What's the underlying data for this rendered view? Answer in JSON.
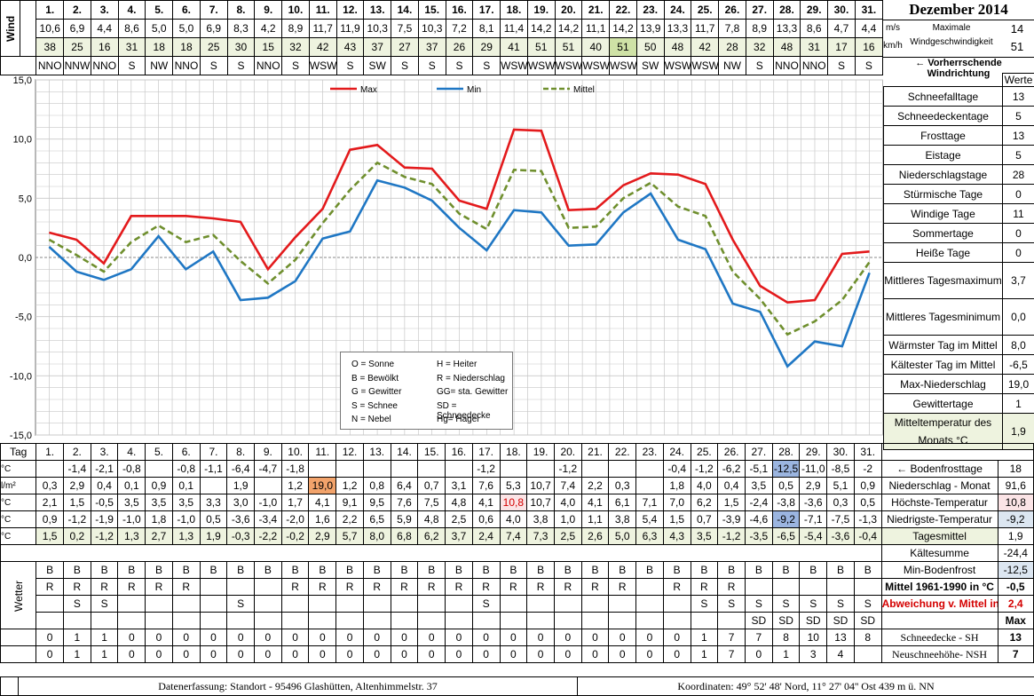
{
  "title": "Dezember 2014",
  "days": [
    "1.",
    "2.",
    "3.",
    "4.",
    "5.",
    "6.",
    "7.",
    "8.",
    "9.",
    "10.",
    "11.",
    "12.",
    "13.",
    "14.",
    "15.",
    "16.",
    "17.",
    "18.",
    "19.",
    "20.",
    "21.",
    "22.",
    "23.",
    "24.",
    "25.",
    "26.",
    "27.",
    "28.",
    "29.",
    "30.",
    "31."
  ],
  "wind": {
    "label": "Wind",
    "ms": [
      "10,6",
      "6,9",
      "4,4",
      "8,6",
      "5,0",
      "5,0",
      "6,9",
      "8,3",
      "4,2",
      "8,9",
      "11,7",
      "11,9",
      "10,3",
      "7,5",
      "10,3",
      "7,2",
      "8,1",
      "11,4",
      "14,2",
      "14,2",
      "11,1",
      "14,2",
      "13,9",
      "13,3",
      "11,7",
      "7,8",
      "8,9",
      "13,3",
      "8,6",
      "4,7",
      "4,4"
    ],
    "kmh": [
      "38",
      "25",
      "16",
      "31",
      "18",
      "18",
      "25",
      "30",
      "15",
      "32",
      "42",
      "43",
      "37",
      "27",
      "37",
      "26",
      "29",
      "41",
      "51",
      "51",
      "40",
      "51",
      "50",
      "48",
      "42",
      "28",
      "32",
      "48",
      "31",
      "17",
      "16"
    ],
    "dir": [
      "NNO",
      "NNW",
      "NNO",
      "S",
      "NW",
      "NNO",
      "S",
      "S",
      "NNO",
      "S",
      "WSW",
      "S",
      "SW",
      "S",
      "S",
      "S",
      "S",
      "WSW",
      "WSW",
      "WSW",
      "WSW",
      "WSW",
      "SW",
      "WSW",
      "WSW",
      "NW",
      "S",
      "NNO",
      "NNO",
      "S",
      "S"
    ],
    "unit_ms": "m/s",
    "unit_kmh": "km/h",
    "max_label_1": "Maximale",
    "max_label_2": "Windgeschwindigkeit",
    "max_ms": "14",
    "max_kmh": "51",
    "dir_label": "← Vorherrschende Windrichtung"
  },
  "chart_data": {
    "type": "line",
    "x": [
      1,
      2,
      3,
      4,
      5,
      6,
      7,
      8,
      9,
      10,
      11,
      12,
      13,
      14,
      15,
      16,
      17,
      18,
      19,
      20,
      21,
      22,
      23,
      24,
      25,
      26,
      27,
      28,
      29,
      30,
      31
    ],
    "ylim": [
      -15,
      15
    ],
    "yticks": [
      "15,0",
      "10,0",
      "5,0",
      "0,0",
      "-5,0",
      "-10,0",
      "-15,0"
    ],
    "series": [
      {
        "name": "Max",
        "color": "#e31a1c",
        "values": [
          2.1,
          1.5,
          -0.5,
          3.5,
          3.5,
          3.5,
          3.3,
          3.0,
          -1.0,
          1.7,
          4.1,
          9.1,
          9.5,
          7.6,
          7.5,
          4.8,
          4.1,
          10.8,
          10.7,
          4.0,
          4.1,
          6.1,
          7.1,
          7.0,
          6.2,
          1.5,
          -2.4,
          -3.8,
          -3.6,
          0.3,
          0.5
        ]
      },
      {
        "name": "Min",
        "color": "#1f77c4",
        "values": [
          0.9,
          -1.2,
          -1.9,
          -1.0,
          1.8,
          -1.0,
          0.5,
          -3.6,
          -3.4,
          -2.0,
          1.6,
          2.2,
          6.5,
          5.9,
          4.8,
          2.5,
          0.6,
          4.0,
          3.8,
          1.0,
          1.1,
          3.8,
          5.4,
          1.5,
          0.7,
          -3.9,
          -4.6,
          -9.2,
          -7.1,
          -7.5,
          -1.3
        ]
      },
      {
        "name": "Mittel",
        "color": "#6f8f2e",
        "dashed": true,
        "values": [
          1.5,
          0.2,
          -1.2,
          1.3,
          2.7,
          1.3,
          1.9,
          -0.3,
          -2.2,
          -0.2,
          2.9,
          5.7,
          8.0,
          6.8,
          6.2,
          3.7,
          2.4,
          7.4,
          7.3,
          2.5,
          2.6,
          5.0,
          6.3,
          4.3,
          3.5,
          -1.2,
          -3.5,
          -6.5,
          -5.4,
          -3.6,
          -0.4
        ]
      }
    ]
  },
  "legend_codes": [
    [
      "O = Sonne",
      "H = Heiter"
    ],
    [
      "B = Bewölkt",
      "R = Niederschlag"
    ],
    [
      "G = Gewitter",
      "GG= sta. Gewitter"
    ],
    [
      "S = Schnee",
      "SD = Schneedecke"
    ],
    [
      "N = Nebel",
      "Hg= Hagel"
    ]
  ],
  "right_panel": {
    "header": "Werte",
    "rows": [
      {
        "label": "Schneefalltage",
        "value": "13"
      },
      {
        "label": "Schneedeckentage",
        "value": "5"
      },
      {
        "label": "Frosttage",
        "value": "13"
      },
      {
        "label": "Eistage",
        "value": "5"
      },
      {
        "label": "Niederschlagstage",
        "value": "28"
      },
      {
        "label": "Stürmische Tage",
        "value": "0"
      },
      {
        "label": "Windige Tage",
        "value": "11"
      },
      {
        "label": "Sommertage",
        "value": "0"
      },
      {
        "label": "Heiße Tage",
        "value": "0"
      },
      {
        "label": "Mittleres Tagesmaximum",
        "value": "3,7"
      },
      {
        "label": "Mittleres Tagesminimum",
        "value": "0,0"
      },
      {
        "label": "Wärmster Tag im Mittel",
        "value": "8,0"
      },
      {
        "label": "Kältester Tag im Mittel",
        "value": "-6,5"
      },
      {
        "label": "Max-Niederschlag",
        "value": "19,0"
      },
      {
        "label": "Gewittertage",
        "value": "1"
      },
      {
        "label": "Mitteltemperatur des Monats °C",
        "value": "1,9"
      }
    ]
  },
  "bottom": {
    "tag_label": "Tag",
    "bodenfrost": {
      "unit": "°C",
      "values": [
        "",
        "-1,4",
        "-2,1",
        "-0,8",
        "",
        "-0,8",
        "-1,1",
        "-6,4",
        "-4,7",
        "-1,8",
        "",
        "",
        "",
        "",
        "",
        "",
        "-1,2",
        "",
        "",
        "-1,2",
        "",
        "",
        "",
        "-0,4",
        "-1,2",
        "-6,2",
        "-5,1",
        "-12,5",
        "-11,0",
        "-8,5",
        "-2"
      ],
      "label": "← Bodenfrosttage",
      "value": "18"
    },
    "niederschlag": {
      "unit": "l/m²",
      "values": [
        "0,3",
        "2,9",
        "0,4",
        "0,1",
        "0,9",
        "0,1",
        "",
        "1,9",
        "",
        "1,2",
        "19,0",
        "1,2",
        "0,8",
        "6,4",
        "0,7",
        "3,1",
        "7,6",
        "5,3",
        "10,7",
        "7,4",
        "2,2",
        "0,3",
        "",
        "1,8",
        "4,0",
        "0,4",
        "3,5",
        "0,5",
        "2,9",
        "5,1",
        "0,9"
      ],
      "label": "Niederschlag - Monat",
      "value": "91,6"
    },
    "hoechst": {
      "unit": "°C",
      "values": [
        "2,1",
        "1,5",
        "-0,5",
        "3,5",
        "3,5",
        "3,5",
        "3,3",
        "3,0",
        "-1,0",
        "1,7",
        "4,1",
        "9,1",
        "9,5",
        "7,6",
        "7,5",
        "4,8",
        "4,1",
        "10,8",
        "10,7",
        "4,0",
        "4,1",
        "6,1",
        "7,1",
        "7,0",
        "6,2",
        "1,5",
        "-2,4",
        "-3,8",
        "-3,6",
        "0,3",
        "0,5"
      ],
      "label": "Höchste-Temperatur",
      "value": "10,8"
    },
    "niedrigst": {
      "unit": "°C",
      "values": [
        "0,9",
        "-1,2",
        "-1,9",
        "-1,0",
        "1,8",
        "-1,0",
        "0,5",
        "-3,6",
        "-3,4",
        "-2,0",
        "1,6",
        "2,2",
        "6,5",
        "5,9",
        "4,8",
        "2,5",
        "0,6",
        "4,0",
        "3,8",
        "1,0",
        "1,1",
        "3,8",
        "5,4",
        "1,5",
        "0,7",
        "-3,9",
        "-4,6",
        "-9,2",
        "-7,1",
        "-7,5",
        "-1,3"
      ],
      "label": "Niedrigste-Temperatur",
      "value": "-9,2"
    },
    "mittel": {
      "unit": "°C",
      "values": [
        "1,5",
        "0,2",
        "-1,2",
        "1,3",
        "2,7",
        "1,3",
        "1,9",
        "-0,3",
        "-2,2",
        "-0,2",
        "2,9",
        "5,7",
        "8,0",
        "6,8",
        "6,2",
        "3,7",
        "2,4",
        "7,4",
        "7,3",
        "2,5",
        "2,6",
        "5,0",
        "6,3",
        "4,3",
        "3,5",
        "-1,2",
        "-3,5",
        "-6,5",
        "-5,4",
        "-3,6",
        "-0,4"
      ],
      "label": "Tagesmittel",
      "value": "1,9"
    },
    "kaeltesumme": {
      "label": "Kältesumme",
      "value": "-24,4"
    },
    "minbodenfrost": {
      "label": "Min-Bodenfrost",
      "value": "-12,5"
    },
    "mittel6190": {
      "label": "Mittel 1961-1990 in °C",
      "value": "-0,5"
    },
    "abweichung": {
      "label": "Abweichung v. Mittel in °C",
      "value": "2,4"
    },
    "max_label": "Max",
    "wetter_label": "Wetter",
    "wetter1": [
      "B",
      "B",
      "B",
      "B",
      "B",
      "B",
      "B",
      "B",
      "B",
      "B",
      "B",
      "B",
      "B",
      "B",
      "B",
      "B",
      "B",
      "B",
      "B",
      "B",
      "B",
      "B",
      "B",
      "B",
      "B",
      "B",
      "B",
      "B",
      "B",
      "B",
      "B"
    ],
    "wetter2": [
      "R",
      "R",
      "R",
      "R",
      "R",
      "R",
      "",
      "",
      "",
      "R",
      "R",
      "R",
      "R",
      "R",
      "R",
      "R",
      "R",
      "R",
      "R",
      "R",
      "R",
      "R",
      "",
      "R",
      "R",
      "R",
      "",
      "",
      "",
      "",
      ""
    ],
    "wetter3": [
      "",
      "S",
      "S",
      "",
      "",
      "",
      "",
      "S",
      "",
      "",
      "",
      "",
      "",
      "",
      "",
      "",
      "S",
      "",
      "",
      "",
      "",
      "",
      "",
      "",
      "S",
      "S",
      "S",
      "S",
      "S",
      "S",
      "S"
    ],
    "wetter4": [
      "",
      "",
      "",
      "",
      "",
      "",
      "",
      "",
      "",
      "",
      "",
      "",
      "",
      "",
      "",
      "",
      "",
      "",
      "",
      "",
      "",
      "",
      "",
      "",
      "",
      "",
      "SD",
      "SD",
      "SD",
      "SD",
      "SD"
    ],
    "schneedecke": {
      "values": [
        "0",
        "1",
        "1",
        "0",
        "0",
        "0",
        "0",
        "0",
        "0",
        "0",
        "0",
        "0",
        "0",
        "0",
        "0",
        "0",
        "0",
        "0",
        "0",
        "0",
        "0",
        "0",
        "0",
        "0",
        "1",
        "7",
        "7",
        "8",
        "10",
        "13",
        "8"
      ],
      "label": "Schneedecke -  SH",
      "value": "13"
    },
    "neuschnee": {
      "values": [
        "0",
        "1",
        "1",
        "0",
        "0",
        "0",
        "0",
        "0",
        "0",
        "0",
        "0",
        "0",
        "0",
        "0",
        "0",
        "0",
        "0",
        "0",
        "0",
        "0",
        "0",
        "0",
        "0",
        "0",
        "1",
        "7",
        "0",
        "1",
        "3",
        "4",
        ""
      ],
      "label": "Neuschneehöhe- NSH",
      "value": "7"
    }
  },
  "footer": {
    "left": "Datenerfassung:  Standort -  95496  Glashütten, Altenhimmelstr. 37",
    "right": "Koordinaten:  49° 52' 48' Nord,   11° 27' 04'' Ost   439 m ü. NN"
  }
}
